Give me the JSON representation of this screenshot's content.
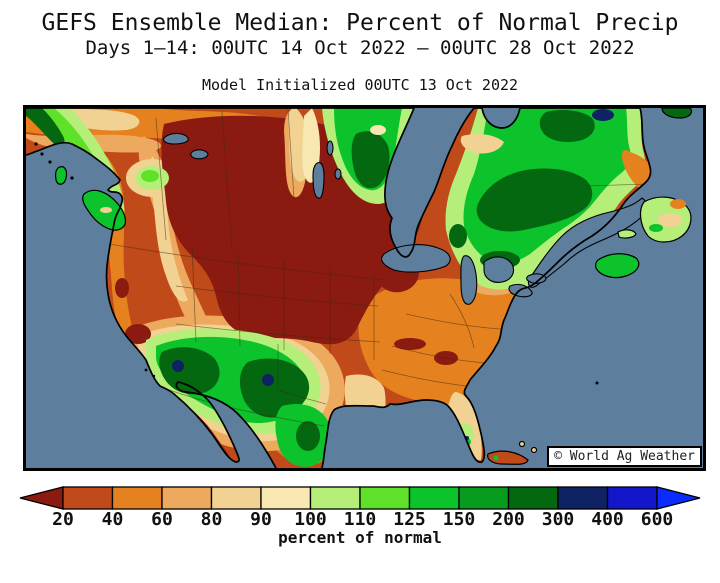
{
  "header": {
    "title": "GEFS Ensemble Median: Percent of Normal Precip",
    "subtitle": "Days 1–14: 00UTC 14 Oct 2022 – 00UTC 28 Oct 2022",
    "model_line": "Model Initialized 00UTC 13 Oct 2022"
  },
  "map": {
    "watermark": "© World Ag Weather",
    "ocean_color": "#5d7e9c",
    "coast_color": "#000000",
    "border_color": "#3f2a10"
  },
  "legend": {
    "label": "percent of normal",
    "tick_labels": [
      "20",
      "40",
      "60",
      "80",
      "90",
      "100",
      "110",
      "125",
      "150",
      "200",
      "300",
      "400",
      "600"
    ],
    "colors": [
      "#8b1a10",
      "#c04a1a",
      "#e5821f",
      "#eda95e",
      "#f2d292",
      "#f8e7b1",
      "#b5ef7a",
      "#5fe129",
      "#0cc32c",
      "#079c1d",
      "#03680f",
      "#0e2264",
      "#1416cb",
      "#0b2cff"
    ]
  },
  "chart_data": {
    "type": "choropleth_map",
    "title": "GEFS Ensemble Median: Percent of Normal Precip",
    "region": "North America",
    "scale_units": "percent of normal",
    "scale_breaks": [
      20,
      40,
      60,
      80,
      90,
      100,
      110,
      125,
      150,
      200,
      300,
      400,
      600
    ],
    "scale_colors": [
      "#8b1a10",
      "#c04a1a",
      "#e5821f",
      "#eda95e",
      "#f2d292",
      "#f8e7b1",
      "#b5ef7a",
      "#5fe129",
      "#0cc32c",
      "#079c1d",
      "#03680f",
      "#0e2264",
      "#1416cb",
      "#0b2cff"
    ],
    "legend_position": "bottom"
  }
}
